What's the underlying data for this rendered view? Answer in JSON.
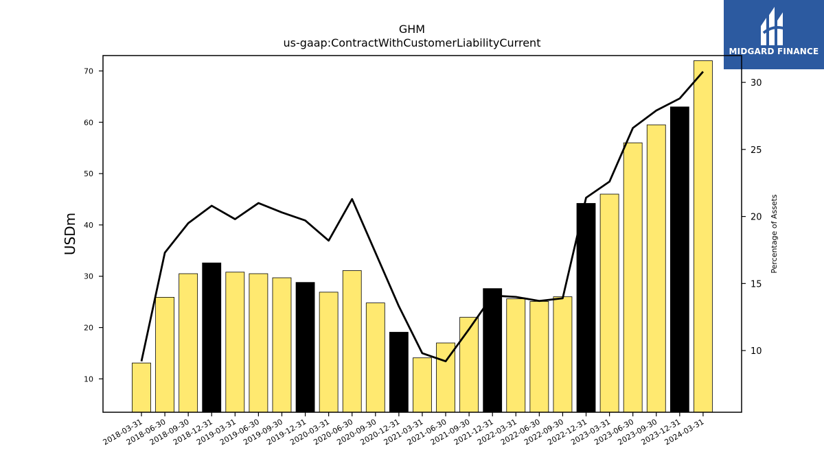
{
  "logo": {
    "text": "MIDGARD FINANCE",
    "bg_color": "#2c5aa0"
  },
  "chart_data": {
    "type": "bar",
    "title": "GHM",
    "subtitle": "us-gaap:ContractWithCustomerLiabilityCurrent",
    "ylabel": "USDm",
    "y2label": "Percentage of Assets",
    "ylim": [
      3.5,
      73
    ],
    "y2lim": [
      5.4,
      32.0
    ],
    "yticks": [
      10,
      20,
      30,
      40,
      50,
      60,
      70
    ],
    "y2ticks": [
      10,
      15,
      20,
      25,
      30
    ],
    "categories": [
      "2018-03-31",
      "2018-06-30",
      "2018-09-30",
      "2018-12-31",
      "2019-03-31",
      "2019-06-30",
      "2019-09-30",
      "2019-12-31",
      "2020-03-31",
      "2020-06-30",
      "2020-09-30",
      "2020-12-31",
      "2021-03-31",
      "2021-06-30",
      "2021-09-30",
      "2021-12-31",
      "2022-03-31",
      "2022-06-30",
      "2022-09-30",
      "2022-12-31",
      "2023-03-31",
      "2023-06-30",
      "2023-09-30",
      "2023-12-31",
      "2024-03-31"
    ],
    "series": [
      {
        "type": "bar",
        "axis": "left",
        "values": [
          13.1,
          25.9,
          30.5,
          32.6,
          30.8,
          30.5,
          29.7,
          28.8,
          26.9,
          31.1,
          24.8,
          19.1,
          14.1,
          17.0,
          22.0,
          27.6,
          25.6,
          25.1,
          26.0,
          44.2,
          46.0,
          56.0,
          59.5,
          63.0,
          72.0
        ]
      },
      {
        "type": "line",
        "axis": "right",
        "values": [
          9.2,
          17.3,
          19.5,
          20.8,
          19.8,
          21.0,
          20.3,
          19.7,
          18.2,
          21.3,
          17.3,
          13.3,
          9.8,
          9.2,
          11.6,
          14.1,
          14.0,
          13.7,
          13.9,
          21.4,
          22.6,
          26.6,
          27.9,
          28.8,
          30.8
        ]
      }
    ],
    "bar_colors": {
      "quarter": "#ffe970",
      "year_end": "#000000"
    },
    "line_color": "#000000",
    "grid": false
  }
}
